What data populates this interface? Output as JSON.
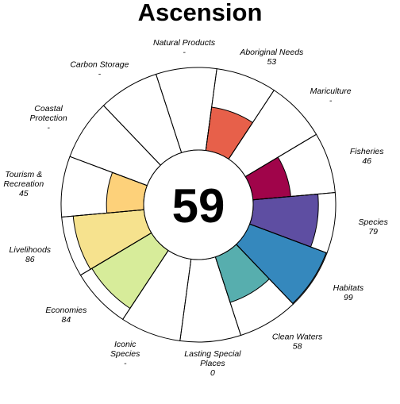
{
  "chart_data": {
    "type": "flower",
    "title": "Ascension",
    "center_score": "59",
    "petals": [
      {
        "label": [
          "Natural Products"
        ],
        "score": null,
        "score_text": "-",
        "color": "#ffffff"
      },
      {
        "label": [
          "Aboriginal Needs"
        ],
        "score": 53,
        "score_text": "53",
        "color": "#e7604a"
      },
      {
        "label": [
          "Mariculture"
        ],
        "score": null,
        "score_text": "-",
        "color": "#ffffff"
      },
      {
        "label": [
          "Fisheries"
        ],
        "score": 46,
        "score_text": "46",
        "color": "#a0044a"
      },
      {
        "label": [
          "Species"
        ],
        "score": 79,
        "score_text": "79",
        "color": "#5e4ea2"
      },
      {
        "label": [
          "Habitats"
        ],
        "score": 99,
        "score_text": "99",
        "color": "#3588bd"
      },
      {
        "label": [
          "Clean Waters"
        ],
        "score": 58,
        "score_text": "58",
        "color": "#57aeae"
      },
      {
        "label": [
          "Lasting Special",
          "Places"
        ],
        "score": 0,
        "score_text": "0",
        "color": "#ffffff"
      },
      {
        "label": [
          "Iconic",
          "Species"
        ],
        "score": null,
        "score_text": "-",
        "color": "#ffffff"
      },
      {
        "label": [
          "Economies"
        ],
        "score": 84,
        "score_text": "84",
        "color": "#d7ec9a"
      },
      {
        "label": [
          "Livelihoods"
        ],
        "score": 86,
        "score_text": "86",
        "color": "#f6e28e"
      },
      {
        "label": [
          "Tourism &",
          "Recreation"
        ],
        "score": 45,
        "score_text": "45",
        "color": "#fdd17a"
      },
      {
        "label": [
          "Coastal",
          "Protection"
        ],
        "score": null,
        "score_text": "-",
        "color": "#ffffff"
      },
      {
        "label": [
          "Carbon Storage"
        ],
        "score": null,
        "score_text": "-",
        "color": "#ffffff"
      }
    ]
  }
}
